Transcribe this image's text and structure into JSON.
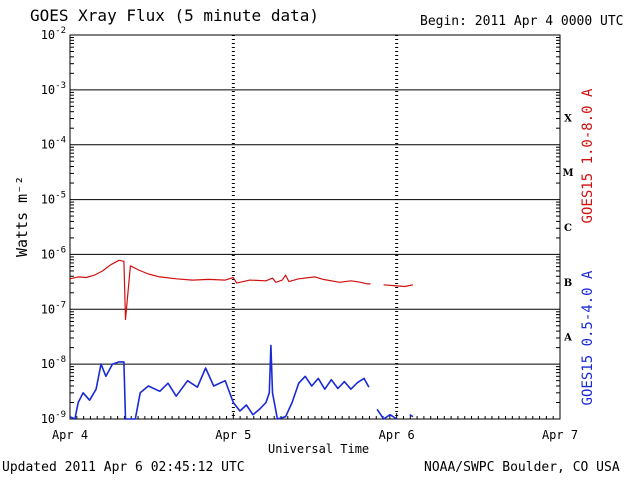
{
  "header": {
    "title": "GOES Xray Flux (5 minute data)",
    "begin": "Begin:  2011 Apr 4 0000 UTC"
  },
  "footer": {
    "updated": "Updated 2011 Apr  6 02:45:12 UTC",
    "credit": "NOAA/SWPC Boulder, CO USA"
  },
  "chart_data": {
    "type": "line",
    "xlabel": "Universal Time",
    "ylabel": "Watts m⁻²",
    "x_ticks": [
      "Apr 4",
      "Apr 5",
      "Apr 6",
      "Apr 7"
    ],
    "x_range_days": [
      0,
      3
    ],
    "ylim": [
      1e-09,
      0.01
    ],
    "y_scale": "log",
    "y_tick_exponents": [
      -2,
      -3,
      -4,
      -5,
      -6,
      -7,
      -8,
      -9
    ],
    "flare_classes": [
      {
        "label": "X",
        "exp": -3.5
      },
      {
        "label": "M",
        "exp": -4.5
      },
      {
        "label": "C",
        "exp": -5.5
      },
      {
        "label": "B",
        "exp": -6.5
      },
      {
        "label": "A",
        "exp": -7.5
      }
    ],
    "grid": true,
    "colors": {
      "long": "#d01010",
      "short": "#1a2ad6"
    },
    "series": [
      {
        "name": "GOES15 1.0-8.0 A",
        "color": "#d01010",
        "points": [
          [
            0.0,
            3.6e-07
          ],
          [
            0.05,
            3.9e-07
          ],
          [
            0.1,
            3.8e-07
          ],
          [
            0.15,
            4.2e-07
          ],
          [
            0.2,
            5e-07
          ],
          [
            0.25,
            6.5e-07
          ],
          [
            0.3,
            7.8e-07
          ],
          [
            0.33,
            7.5e-07
          ],
          [
            0.34,
            6.5e-08
          ],
          [
            0.37,
            6.2e-07
          ],
          [
            0.42,
            5.2e-07
          ],
          [
            0.48,
            4.4e-07
          ],
          [
            0.55,
            3.9e-07
          ],
          [
            0.65,
            3.6e-07
          ],
          [
            0.75,
            3.4e-07
          ],
          [
            0.85,
            3.5e-07
          ],
          [
            0.95,
            3.4e-07
          ],
          [
            1.0,
            3.8e-07
          ],
          [
            1.02,
            3e-07
          ],
          [
            1.1,
            3.4e-07
          ],
          [
            1.2,
            3.3e-07
          ],
          [
            1.24,
            3.7e-07
          ],
          [
            1.26,
            3.1e-07
          ],
          [
            1.3,
            3.4e-07
          ],
          [
            1.32,
            4.2e-07
          ],
          [
            1.34,
            3.2e-07
          ],
          [
            1.4,
            3.6e-07
          ],
          [
            1.5,
            3.9e-07
          ],
          [
            1.55,
            3.5e-07
          ],
          [
            1.65,
            3.1e-07
          ],
          [
            1.72,
            3.3e-07
          ],
          [
            1.78,
            3.1e-07
          ],
          [
            1.82,
            2.9e-07
          ],
          [
            1.84,
            2.9e-07
          ],
          null,
          [
            1.92,
            2.8e-07
          ],
          [
            1.98,
            2.7e-07
          ],
          [
            2.05,
            2.6e-07
          ],
          [
            2.1,
            2.8e-07
          ]
        ]
      },
      {
        "name": "GOES15 0.5-4.0 A",
        "color": "#1a2ad6",
        "points": [
          [
            0.0,
            1.1e-09
          ],
          [
            0.03,
            1e-09
          ],
          [
            0.05,
            2e-09
          ],
          [
            0.08,
            3e-09
          ],
          [
            0.12,
            2.2e-09
          ],
          [
            0.16,
            3.5e-09
          ],
          [
            0.19,
            1e-08
          ],
          [
            0.22,
            6e-09
          ],
          [
            0.26,
            1e-08
          ],
          [
            0.3,
            1.1e-08
          ],
          [
            0.33,
            1.1e-08
          ],
          [
            0.34,
            1e-09
          ],
          [
            0.4,
            1e-09
          ],
          [
            0.43,
            3e-09
          ],
          [
            0.48,
            4e-09
          ],
          [
            0.55,
            3.2e-09
          ],
          [
            0.6,
            4.5e-09
          ],
          [
            0.65,
            2.6e-09
          ],
          [
            0.72,
            5e-09
          ],
          [
            0.78,
            3.8e-09
          ],
          [
            0.83,
            8.5e-09
          ],
          [
            0.88,
            4e-09
          ],
          [
            0.95,
            5e-09
          ],
          [
            1.0,
            2e-09
          ],
          [
            1.04,
            1.4e-09
          ],
          [
            1.08,
            1.8e-09
          ],
          [
            1.12,
            1.2e-09
          ],
          [
            1.16,
            1.5e-09
          ],
          [
            1.2,
            2e-09
          ],
          [
            1.22,
            3e-09
          ],
          [
            1.23,
            2.2e-08
          ],
          [
            1.24,
            3e-09
          ],
          [
            1.27,
            1e-09
          ],
          [
            1.32,
            1.1e-09
          ],
          [
            1.36,
            2e-09
          ],
          [
            1.4,
            4.5e-09
          ],
          [
            1.44,
            6e-09
          ],
          [
            1.48,
            4e-09
          ],
          [
            1.52,
            5.5e-09
          ],
          [
            1.56,
            3.5e-09
          ],
          [
            1.6,
            5.2e-09
          ],
          [
            1.64,
            3.6e-09
          ],
          [
            1.68,
            4.8e-09
          ],
          [
            1.72,
            3.5e-09
          ],
          [
            1.76,
            4.6e-09
          ],
          [
            1.8,
            5.5e-09
          ],
          [
            1.83,
            3.8e-09
          ],
          null,
          [
            1.88,
            1.5e-09
          ],
          [
            1.92,
            1e-09
          ],
          [
            1.96,
            1.2e-09
          ],
          [
            2.0,
            1e-09
          ],
          null,
          [
            2.08,
            1.2e-09
          ],
          [
            2.1,
            1.1e-09
          ]
        ]
      }
    ]
  }
}
